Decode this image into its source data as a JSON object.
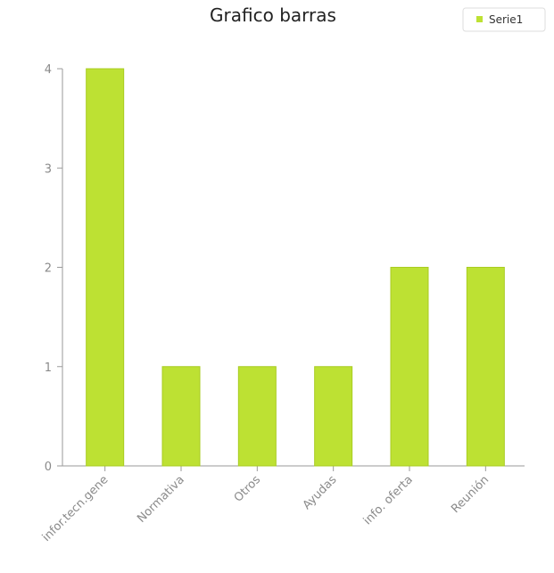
{
  "chart_data": {
    "type": "bar",
    "title": "Grafico barras",
    "categories": [
      "infor.tecn.gene",
      "Normativa",
      "Otros",
      "Ayudas",
      "info. oferta",
      "Reunión"
    ],
    "series": [
      {
        "name": "Serie1",
        "values": [
          4,
          1,
          1,
          1,
          2,
          2
        ],
        "color": "#bde133"
      }
    ],
    "ylim": [
      0,
      4
    ],
    "yticks": [
      0,
      1,
      2,
      3,
      4
    ],
    "xlabel": "",
    "ylabel": "",
    "grid": false,
    "legend": {
      "position": "top-right"
    },
    "colors": {
      "axis": "#9a9a9a",
      "text": "#8a8a8a",
      "bar": "#bde133",
      "bar_edge": "#a9cc22"
    }
  }
}
